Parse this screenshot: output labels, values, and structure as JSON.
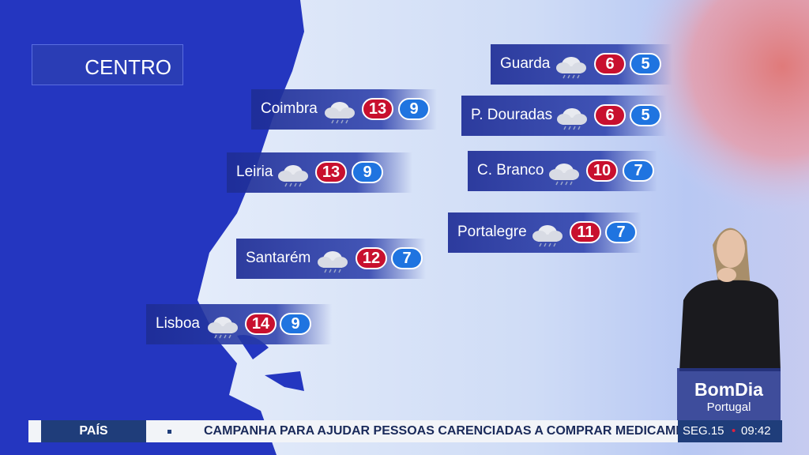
{
  "region": "CENTRO",
  "cities": [
    {
      "name": "Guarda",
      "max": "6",
      "min": "5"
    },
    {
      "name": "P. Douradas",
      "max": "6",
      "min": "5"
    },
    {
      "name": "Coimbra",
      "max": "13",
      "min": "9"
    },
    {
      "name": "Leiria",
      "max": "13",
      "min": "9"
    },
    {
      "name": "C. Branco",
      "max": "10",
      "min": "7"
    },
    {
      "name": "Portalegre",
      "max": "11",
      "min": "7"
    },
    {
      "name": "Santarém",
      "max": "12",
      "min": "7"
    },
    {
      "name": "Lisboa",
      "max": "14",
      "min": "9"
    }
  ],
  "logo": {
    "brand": "BomDia",
    "sub": "Portugal"
  },
  "ticker": {
    "section": "PAÍS",
    "headline": "CAMPANHA PARA AJUDAR PESSOAS CARENCIADAS A COMPRAR MEDICAMENTOS",
    "day": "SEG.15",
    "time": "09:42"
  }
}
